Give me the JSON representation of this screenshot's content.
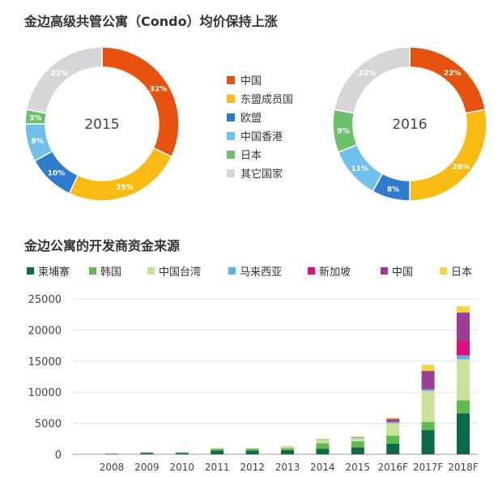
{
  "page": {
    "title_top": "金边高级共管公寓（Condo）均价保持上涨",
    "title_bottom": "金边公寓的开发商资金来源"
  },
  "chart_data": [
    {
      "type": "pie",
      "variant": "donut",
      "center_label": "2015",
      "categories": [
        "中国",
        "东盟成员国",
        "欧盟",
        "中国香港",
        "日本",
        "其它国家"
      ],
      "values": [
        32,
        25,
        10,
        8,
        3,
        22
      ],
      "labels": [
        "32%",
        "25%",
        "10%",
        "8%",
        "3%",
        "22%"
      ],
      "colors": [
        "#e8520f",
        "#f7bb14",
        "#2f7ccf",
        "#6fc1ec",
        "#6cc06c",
        "#d6d6d6"
      ],
      "legend_order": [
        "中国",
        "东盟成员国",
        "欧盟",
        "中国香港",
        "日本",
        "其它国家"
      ]
    },
    {
      "type": "pie",
      "variant": "donut",
      "center_label": "2016",
      "categories": [
        "中国",
        "东盟成员国",
        "欧盟",
        "中国香港",
        "日本",
        "其它国家"
      ],
      "values": [
        22,
        28,
        8,
        11,
        9,
        22
      ],
      "labels": [
        "22%",
        "28%",
        "8%",
        "11%",
        "9%",
        "22%"
      ],
      "colors": [
        "#e8520f",
        "#f7bb14",
        "#2f7ccf",
        "#6fc1ec",
        "#6cc06c",
        "#d6d6d6"
      ]
    },
    {
      "type": "bar",
      "stacked": true,
      "categories": [
        "2008",
        "2009",
        "2010",
        "2011",
        "2012",
        "2013",
        "2014",
        "2015",
        "2016F",
        "2017F",
        "2018F"
      ],
      "ylim": [
        0,
        25000
      ],
      "yticks": [
        0,
        5000,
        10000,
        15000,
        20000,
        25000
      ],
      "grid": true,
      "legend_position": "top",
      "series": [
        {
          "name": "柬埔寨",
          "color": "#0b6b47",
          "values": [
            80,
            220,
            220,
            600,
            600,
            650,
            900,
            1100,
            1700,
            3900,
            6600
          ]
        },
        {
          "name": "韩国",
          "color": "#62b94f",
          "values": [
            30,
            100,
            100,
            300,
            300,
            350,
            900,
            1000,
            1300,
            1300,
            2100
          ]
        },
        {
          "name": "中国台湾",
          "color": "#c8e29a",
          "values": [
            0,
            0,
            0,
            80,
            100,
            200,
            500,
            500,
            2000,
            5000,
            6600
          ]
        },
        {
          "name": "马来西亚",
          "color": "#5bb4e0",
          "values": [
            0,
            0,
            0,
            0,
            0,
            50,
            100,
            150,
            200,
            250,
            600
          ]
        },
        {
          "name": "新加坡",
          "color": "#e0107a",
          "values": [
            0,
            0,
            0,
            0,
            0,
            0,
            0,
            0,
            100,
            150,
            2400
          ]
        },
        {
          "name": "中国",
          "color": "#9b3d97",
          "values": [
            0,
            0,
            0,
            0,
            0,
            0,
            0,
            0,
            400,
            2800,
            4500
          ]
        },
        {
          "name": "日本",
          "color": "#f3d542",
          "values": [
            0,
            0,
            0,
            0,
            0,
            50,
            100,
            150,
            200,
            1000,
            1000
          ]
        }
      ]
    }
  ]
}
